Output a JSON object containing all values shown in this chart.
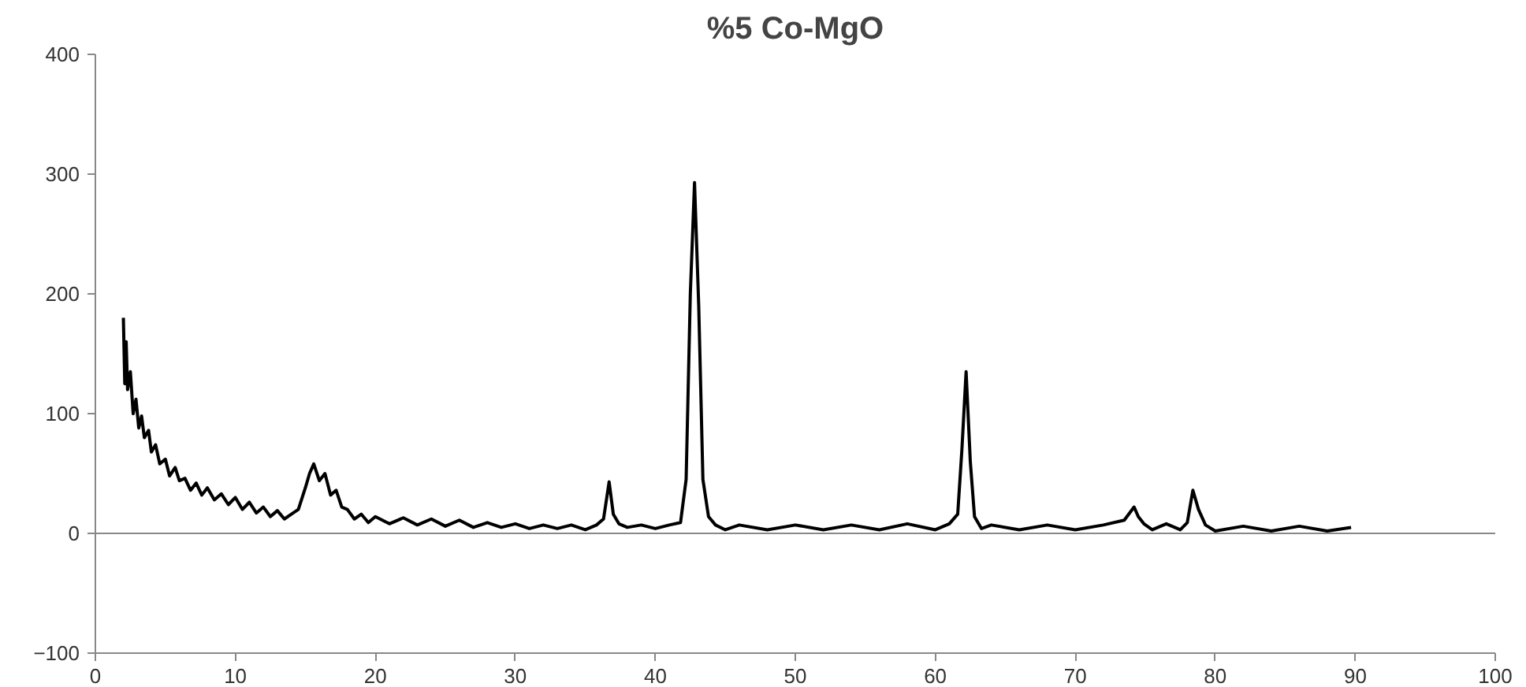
{
  "chart_data": {
    "type": "line",
    "title": "%5 Co-MgO",
    "x": [
      2.0,
      2.1,
      2.2,
      2.3,
      2.5,
      2.7,
      2.9,
      3.1,
      3.3,
      3.5,
      3.8,
      4.0,
      4.3,
      4.6,
      5.0,
      5.3,
      5.7,
      6.0,
      6.4,
      6.8,
      7.2,
      7.6,
      8.0,
      8.5,
      9.0,
      9.5,
      10.0,
      10.5,
      11.0,
      11.5,
      12.0,
      12.5,
      13.0,
      13.5,
      14.0,
      14.5,
      15.0,
      15.3,
      15.6,
      16.0,
      16.4,
      16.8,
      17.2,
      17.6,
      18.0,
      18.5,
      19.0,
      19.5,
      20.0,
      21.0,
      22.0,
      23.0,
      24.0,
      25.0,
      26.0,
      27.0,
      28.0,
      29.0,
      30.0,
      31.0,
      32.0,
      33.0,
      34.0,
      35.0,
      35.8,
      36.3,
      36.7,
      37.0,
      37.4,
      38.0,
      39.0,
      40.0,
      41.0,
      41.8,
      42.2,
      42.5,
      42.8,
      43.1,
      43.4,
      43.8,
      44.3,
      45.0,
      46.0,
      48.0,
      50.0,
      52.0,
      54.0,
      56.0,
      58.0,
      60.0,
      61.0,
      61.6,
      61.9,
      62.2,
      62.5,
      62.8,
      63.3,
      64.0,
      66.0,
      68.0,
      70.0,
      72.0,
      73.5,
      74.2,
      74.5,
      74.9,
      75.5,
      76.5,
      77.5,
      78.0,
      78.4,
      78.8,
      79.3,
      80.0,
      82.0,
      84.0,
      86.0,
      88.0,
      89.7
    ],
    "values": [
      180,
      125,
      160,
      120,
      135,
      100,
      112,
      88,
      98,
      80,
      86,
      68,
      74,
      58,
      62,
      48,
      55,
      44,
      46,
      36,
      42,
      32,
      38,
      28,
      33,
      24,
      30,
      20,
      26,
      17,
      22,
      14,
      19,
      12,
      16,
      20,
      38,
      50,
      58,
      44,
      50,
      32,
      36,
      22,
      20,
      12,
      16,
      9,
      14,
      8,
      13,
      7,
      12,
      6,
      11,
      5,
      9,
      5,
      8,
      4,
      7,
      4,
      7,
      3,
      7,
      12,
      43,
      16,
      8,
      5,
      7,
      4,
      7,
      9,
      45,
      200,
      293,
      190,
      45,
      14,
      7,
      3,
      7,
      3,
      7,
      3,
      7,
      3,
      8,
      3,
      8,
      16,
      70,
      135,
      60,
      14,
      4,
      7,
      3,
      7,
      3,
      7,
      11,
      22,
      14,
      8,
      3,
      8,
      3,
      9,
      36,
      20,
      7,
      2,
      6,
      2,
      6,
      2,
      5
    ],
    "color": "#000000",
    "xlim": [
      0,
      100
    ],
    "ylim": [
      -100,
      400
    ],
    "xticks": [
      0,
      10,
      20,
      30,
      40,
      50,
      60,
      70,
      80,
      90,
      100
    ],
    "yticks": [
      -100,
      0,
      100,
      200,
      300,
      400
    ],
    "ref_lines": [
      {
        "axis": "y",
        "value": 0,
        "color": "#888888",
        "line_style": "solid"
      }
    ],
    "grid": false,
    "marker": "none",
    "line_style": "solid"
  }
}
